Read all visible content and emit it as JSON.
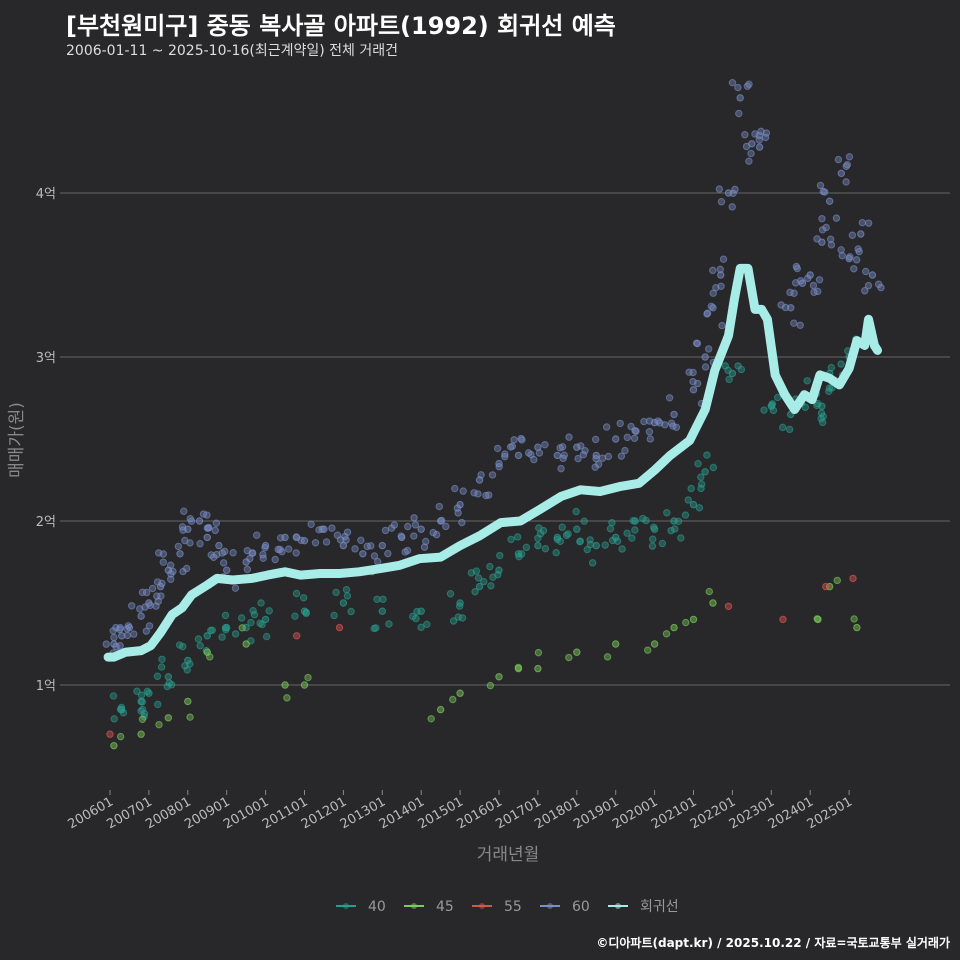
{
  "title": "[부천원미구] 중동 복사골 아파트(1992) 회귀선 예측",
  "subtitle": "2006-01-11 ~ 2025-10-16(최근계약일) 전체 거래건",
  "credit": "©디아파트(dapt.kr) / 2025.10.22 / 자료=국토교통부 실거래가",
  "chart_data": {
    "type": "scatter",
    "title": "[부천원미구] 중동 복사골 아파트(1992) 회귀선 예측",
    "xlabel": "거래년월",
    "ylabel": "매매가(원)",
    "xlim": [
      2005.95,
      2025.95
    ],
    "ylim": [
      4000,
      47000
    ],
    "y_ticks": [
      {
        "v": 10000,
        "label": "1억"
      },
      {
        "v": 20000,
        "label": "2억"
      },
      {
        "v": 30000,
        "label": "3억"
      },
      {
        "v": 40000,
        "label": "4억"
      }
    ],
    "x_ticks": [
      {
        "v": 2006,
        "label": "200601"
      },
      {
        "v": 2007,
        "label": "200701"
      },
      {
        "v": 2008,
        "label": "200801"
      },
      {
        "v": 2009,
        "label": "200901"
      },
      {
        "v": 2010,
        "label": "201001"
      },
      {
        "v": 2011,
        "label": "201101"
      },
      {
        "v": 2012,
        "label": "201201"
      },
      {
        "v": 2013,
        "label": "201301"
      },
      {
        "v": 2014,
        "label": "201401"
      },
      {
        "v": 2015,
        "label": "201501"
      },
      {
        "v": 2016,
        "label": "201601"
      },
      {
        "v": 2017,
        "label": "201701"
      },
      {
        "v": 2018,
        "label": "201801"
      },
      {
        "v": 2019,
        "label": "201901"
      },
      {
        "v": 2020,
        "label": "202001"
      },
      {
        "v": 2021,
        "label": "202101"
      },
      {
        "v": 2022,
        "label": "202201"
      },
      {
        "v": 2023,
        "label": "202301"
      },
      {
        "v": 2024,
        "label": "202401"
      },
      {
        "v": 2025,
        "label": "202501"
      }
    ],
    "legend_position": "bottom",
    "series": [
      {
        "name": "40",
        "color": "#2a9d8f",
        "points": [
          [
            2006.3,
            8500
          ],
          [
            2006.8,
            9000
          ],
          [
            2007.0,
            9500
          ],
          [
            2007.5,
            10500
          ],
          [
            2008.0,
            11500
          ],
          [
            2008.5,
            13000
          ],
          [
            2009.0,
            13500
          ],
          [
            2009.5,
            13500
          ],
          [
            2010.0,
            14000
          ],
          [
            2011.0,
            14500
          ],
          [
            2012.0,
            15000
          ],
          [
            2013.0,
            14500
          ],
          [
            2014.0,
            14500
          ],
          [
            2015.0,
            15000
          ],
          [
            2015.5,
            16000
          ],
          [
            2016.0,
            17000
          ],
          [
            2016.5,
            18000
          ],
          [
            2017.0,
            18500
          ],
          [
            2017.5,
            19000
          ],
          [
            2018.0,
            19500
          ],
          [
            2018.5,
            18500
          ],
          [
            2019.0,
            19000
          ],
          [
            2019.5,
            20000
          ],
          [
            2020.0,
            19500
          ],
          [
            2020.5,
            20000
          ],
          [
            2021.0,
            21000
          ],
          [
            2021.3,
            23000
          ],
          [
            2022.0,
            29000
          ],
          [
            2023.0,
            27000
          ],
          [
            2023.5,
            26500
          ],
          [
            2024.0,
            27500
          ],
          [
            2024.3,
            27000
          ],
          [
            2024.5,
            29000
          ],
          [
            2025.0,
            30000
          ]
        ]
      },
      {
        "name": "45",
        "color": "#7ccc5c",
        "points": [
          [
            2006.1,
            6300
          ],
          [
            2006.8,
            7000
          ],
          [
            2007.5,
            8000
          ],
          [
            2008.0,
            9000
          ],
          [
            2008.5,
            12000
          ],
          [
            2009.5,
            12500
          ],
          [
            2010.5,
            10000
          ],
          [
            2011.0,
            10000
          ],
          [
            2014.5,
            8500
          ],
          [
            2015.0,
            9500
          ],
          [
            2016.0,
            10500
          ],
          [
            2016.5,
            11000
          ],
          [
            2017.0,
            11000
          ],
          [
            2018.0,
            12000
          ],
          [
            2019.0,
            12500
          ],
          [
            2020.0,
            12500
          ],
          [
            2020.5,
            13500
          ],
          [
            2021.0,
            14000
          ],
          [
            2021.5,
            15000
          ],
          [
            2024.2,
            14000
          ],
          [
            2024.5,
            16000
          ],
          [
            2025.2,
            13500
          ]
        ]
      },
      {
        "name": "55",
        "color": "#d9534f",
        "points": [
          [
            2006.0,
            7000
          ],
          [
            2010.8,
            13000
          ],
          [
            2011.9,
            13500
          ],
          [
            2021.9,
            14800
          ],
          [
            2023.3,
            14000
          ],
          [
            2024.4,
            16000
          ],
          [
            2025.1,
            16500
          ]
        ]
      },
      {
        "name": "60",
        "color": "#7b8fc7",
        "points": [
          [
            2006.1,
            12500
          ],
          [
            2006.3,
            13000
          ],
          [
            2006.5,
            13500
          ],
          [
            2006.8,
            14200
          ],
          [
            2007.0,
            15000
          ],
          [
            2007.3,
            16000
          ],
          [
            2007.5,
            17000
          ],
          [
            2007.8,
            18000
          ],
          [
            2008.0,
            19500
          ],
          [
            2008.3,
            20000
          ],
          [
            2008.5,
            19000
          ],
          [
            2008.8,
            18500
          ],
          [
            2009.0,
            17000
          ],
          [
            2009.5,
            17500
          ],
          [
            2010.0,
            18500
          ],
          [
            2010.5,
            19000
          ],
          [
            2011.0,
            18800
          ],
          [
            2011.5,
            19500
          ],
          [
            2012.0,
            18500
          ],
          [
            2012.5,
            18000
          ],
          [
            2013.0,
            18500
          ],
          [
            2013.5,
            19000
          ],
          [
            2014.0,
            19500
          ],
          [
            2014.5,
            20000
          ],
          [
            2015.0,
            21000
          ],
          [
            2015.5,
            22500
          ],
          [
            2016.0,
            23500
          ],
          [
            2016.5,
            24000
          ],
          [
            2017.0,
            24500
          ],
          [
            2017.5,
            24000
          ],
          [
            2018.0,
            24500
          ],
          [
            2018.5,
            24000
          ],
          [
            2019.0,
            25000
          ],
          [
            2019.5,
            25500
          ],
          [
            2020.0,
            26000
          ],
          [
            2020.5,
            26500
          ],
          [
            2021.0,
            28000
          ],
          [
            2021.3,
            30000
          ],
          [
            2021.5,
            33000
          ],
          [
            2021.7,
            35000
          ],
          [
            2021.9,
            40000
          ],
          [
            2022.2,
            45800
          ],
          [
            2022.5,
            43000
          ],
          [
            2022.7,
            42800
          ],
          [
            2023.5,
            33000
          ],
          [
            2023.8,
            34500
          ],
          [
            2024.0,
            35000
          ],
          [
            2024.3,
            37000
          ],
          [
            2024.5,
            39500
          ],
          [
            2024.8,
            41200
          ],
          [
            2025.0,
            36000
          ],
          [
            2025.3,
            37500
          ],
          [
            2025.6,
            35000
          ]
        ]
      }
    ],
    "regression": {
      "name": "회귀선",
      "color": "#a8ece8",
      "points": [
        [
          2005.95,
          11700
        ],
        [
          2006.1,
          11700
        ],
        [
          2006.4,
          12000
        ],
        [
          2006.8,
          12100
        ],
        [
          2007.05,
          12400
        ],
        [
          2007.3,
          13200
        ],
        [
          2007.6,
          14300
        ],
        [
          2007.85,
          14700
        ],
        [
          2008.1,
          15500
        ],
        [
          2008.5,
          16100
        ],
        [
          2008.75,
          16500
        ],
        [
          2009.15,
          16400
        ],
        [
          2009.65,
          16500
        ],
        [
          2010.05,
          16700
        ],
        [
          2010.5,
          16900
        ],
        [
          2010.9,
          16700
        ],
        [
          2011.4,
          16800
        ],
        [
          2011.9,
          16800
        ],
        [
          2012.4,
          16900
        ],
        [
          2012.95,
          17100
        ],
        [
          2013.45,
          17300
        ],
        [
          2013.95,
          17700
        ],
        [
          2014.5,
          17800
        ],
        [
          2015.0,
          18500
        ],
        [
          2015.5,
          19100
        ],
        [
          2016.05,
          19900
        ],
        [
          2016.55,
          20000
        ],
        [
          2017.05,
          20700
        ],
        [
          2017.6,
          21500
        ],
        [
          2018.1,
          21900
        ],
        [
          2018.6,
          21800
        ],
        [
          2019.1,
          22100
        ],
        [
          2019.6,
          22300
        ],
        [
          2020.0,
          23100
        ],
        [
          2020.4,
          24000
        ],
        [
          2020.9,
          24900
        ],
        [
          2021.3,
          26800
        ],
        [
          2021.55,
          29200
        ],
        [
          2021.9,
          31300
        ],
        [
          2022.05,
          33500
        ],
        [
          2022.2,
          35400
        ],
        [
          2022.4,
          35400
        ],
        [
          2022.58,
          32900
        ],
        [
          2022.75,
          32900
        ],
        [
          2022.9,
          32300
        ],
        [
          2023.1,
          28900
        ],
        [
          2023.35,
          27700
        ],
        [
          2023.6,
          26800
        ],
        [
          2023.85,
          27700
        ],
        [
          2024.05,
          27400
        ],
        [
          2024.25,
          28900
        ],
        [
          2024.5,
          28700
        ],
        [
          2024.75,
          28300
        ],
        [
          2025.0,
          29300
        ],
        [
          2025.2,
          31000
        ],
        [
          2025.4,
          30700
        ],
        [
          2025.5,
          32300
        ],
        [
          2025.65,
          30700
        ],
        [
          2025.73,
          30400
        ]
      ]
    }
  }
}
